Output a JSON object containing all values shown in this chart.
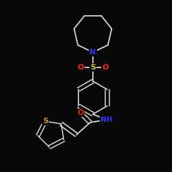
{
  "background_color": "#080808",
  "bond_color": "#d8d8d8",
  "atom_colors": {
    "N": "#3333ff",
    "O": "#ff2200",
    "S_sulfonyl": "#cccc00",
    "S_thiophene": "#cc9900",
    "NH": "#3333ff"
  },
  "figsize": [
    2.5,
    2.5
  ],
  "dpi": 100
}
